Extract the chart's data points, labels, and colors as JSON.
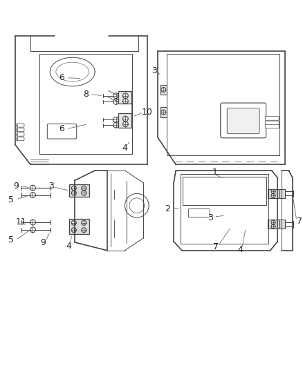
{
  "bg_color": "#ffffff",
  "line_color": "#444444",
  "font_size": 9,
  "lw_main": 1.2,
  "lw_thin": 0.7,
  "lw_bolt": 0.8
}
